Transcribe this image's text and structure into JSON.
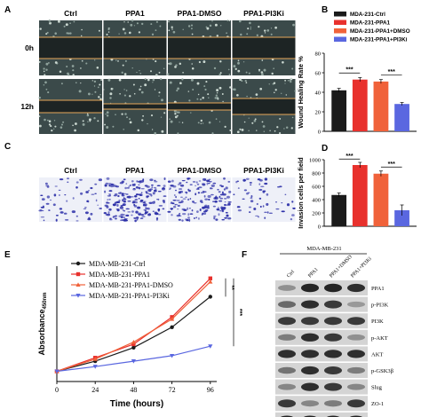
{
  "panels": {
    "A": "A",
    "B": "B",
    "C": "C",
    "D": "D",
    "E": "E",
    "F": "F"
  },
  "panel_a": {
    "columns": [
      "Ctrl",
      "PPA1",
      "PPA1-DMSO",
      "PPA1-PI3Ki"
    ],
    "rows": [
      "0h",
      "12h"
    ]
  },
  "panel_c": {
    "columns": [
      "Ctrl",
      "PPA1",
      "PPA1-DMSO",
      "PPA1-PI3Ki"
    ]
  },
  "panel_f": {
    "cell_line": "MDA-MB-231",
    "columns": [
      "Ctrl",
      "PPA1",
      "PPA1+DMSO",
      "PPA1+PI3Ki"
    ],
    "bands": [
      "PPA1",
      "p-PI3K",
      "PI3K",
      "p-AKT",
      "AKT",
      "p-GSK3β",
      "Slug",
      "ZO-1",
      "β-actin"
    ]
  },
  "colors": {
    "ctrl": "#1a1a1a",
    "ppa1": "#e8312d",
    "dmso": "#f0623a",
    "pi3ki": "#5a67e0",
    "stain": "#2c2fa8",
    "guide": "#e8a85a"
  },
  "chart_data": [
    {
      "id": "B",
      "type": "bar",
      "ylabel": "Wound Healing Rate %",
      "ylim": [
        0,
        80
      ],
      "yticks": [
        "0",
        "20",
        "40",
        "60",
        "80"
      ],
      "legend": [
        "MDA-231-Ctrl",
        "MDA-231-PPA1",
        "MDA-231-PPA1+DMSO",
        "MDA-231-PPA1+PI3Ki"
      ],
      "values": [
        42,
        53,
        51,
        28
      ],
      "errors": [
        2,
        2,
        2,
        1.5
      ],
      "significance": [
        "***",
        "***"
      ]
    },
    {
      "id": "D",
      "type": "bar",
      "ylabel": "Invasion cells per field",
      "ylim": [
        0,
        1000
      ],
      "yticks": [
        "0",
        "200",
        "400",
        "600",
        "800",
        "1000"
      ],
      "values": [
        470,
        920,
        790,
        240
      ],
      "errors": [
        30,
        40,
        40,
        80
      ],
      "significance": [
        "***",
        "***"
      ]
    },
    {
      "id": "E",
      "type": "line",
      "xlabel": "Time (hours)",
      "ylabel": "Absorbance",
      "ylabel_sub": "450nm",
      "x": [
        0,
        24,
        48,
        72,
        96
      ],
      "xticks": [
        "0",
        "24",
        "48",
        "72",
        "96"
      ],
      "series": [
        {
          "name": "MDA-MB-231-Ctrl",
          "values": [
            0.35,
            0.5,
            0.7,
            1.0,
            1.45
          ]
        },
        {
          "name": "MDA-MB-231-PPA1",
          "values": [
            0.35,
            0.55,
            0.75,
            1.15,
            1.72
          ]
        },
        {
          "name": "MDA-MB-231-PPA1-DMSO",
          "values": [
            0.35,
            0.53,
            0.78,
            1.12,
            1.67
          ]
        },
        {
          "name": "MDA-MB-231-PPA1-PI3Ki",
          "values": [
            0.35,
            0.42,
            0.5,
            0.58,
            0.72
          ]
        }
      ],
      "significance": [
        "**",
        "***"
      ]
    }
  ]
}
